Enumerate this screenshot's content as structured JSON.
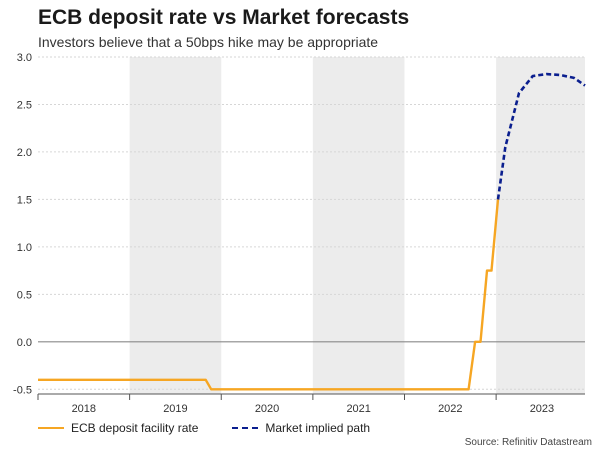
{
  "title": "ECB deposit rate vs Market forecasts",
  "subtitle": "Investors believe that a 50bps hike may be appropriate",
  "source": "Source: Refinitiv Datastream",
  "colors": {
    "ecb": "#f6a623",
    "market": "#0b1f8f",
    "band": "#ececec",
    "grid": "#d6d6d6",
    "zero": "#8a8a8a"
  },
  "chart_data": {
    "type": "line",
    "title": "ECB deposit rate vs Market forecasts",
    "xlabel": "",
    "ylabel": "",
    "xlim": [
      2017.75,
      2023.72
    ],
    "ylim": [
      -0.55,
      3.0
    ],
    "y_ticks": [
      3.0,
      2.5,
      2.0,
      1.5,
      1.0,
      0.5,
      0.0,
      -0.5
    ],
    "y_tick_labels": [
      "3.0",
      "2.5",
      "2.0",
      "1.5",
      "1.0",
      "0.5",
      "0.0",
      "-0.5"
    ],
    "x_ticks": [
      2018.25,
      2019.25,
      2020.25,
      2021.25,
      2022.25,
      2023.25
    ],
    "x_tick_labels": [
      "2018",
      "2019",
      "2020",
      "2021",
      "2022",
      "2023"
    ],
    "shaded_years": [
      [
        2018.75,
        2019.75
      ],
      [
        2020.75,
        2021.75
      ],
      [
        2022.75,
        2023.75
      ]
    ],
    "series": [
      {
        "name": "ECB deposit facility rate",
        "style": "solid",
        "x": [
          2017.75,
          2019.58,
          2019.64,
          2022.45,
          2022.52,
          2022.58,
          2022.65,
          2022.7,
          2022.77
        ],
        "y": [
          -0.4,
          -0.4,
          -0.5,
          -0.5,
          0.0,
          0.0,
          0.75,
          0.75,
          1.5
        ]
      },
      {
        "name": "Market implied path",
        "style": "dashed",
        "x": [
          2022.77,
          2022.85,
          2023.0,
          2023.15,
          2023.3,
          2023.45,
          2023.6,
          2023.72
        ],
        "y": [
          1.5,
          2.05,
          2.62,
          2.8,
          2.82,
          2.81,
          2.78,
          2.7
        ]
      }
    ],
    "legend": [
      "ECB deposit facility rate",
      "Market implied path"
    ],
    "legend_position": "bottom-left"
  }
}
